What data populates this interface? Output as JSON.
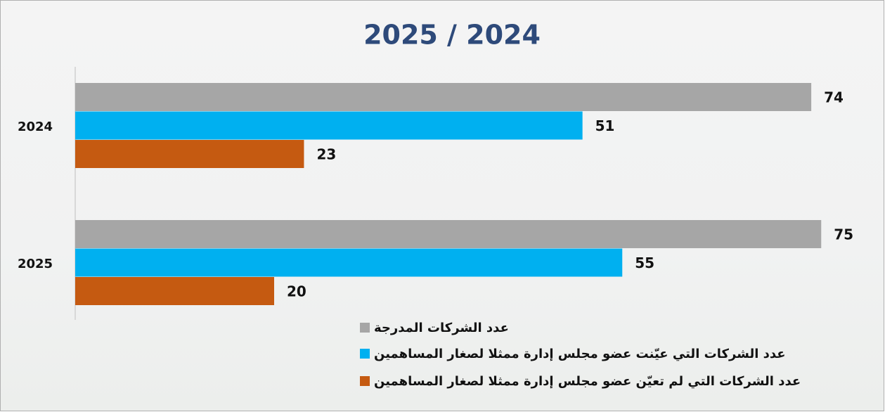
{
  "chart_data": {
    "type": "hbar",
    "title": "2025 / 2024",
    "categories": [
      "2024",
      "2025"
    ],
    "series": [
      {
        "name": "عدد الشركات المدرجة",
        "color": "#a6a6a6",
        "values": [
          74,
          75
        ]
      },
      {
        "name": "عدد الشركات التي عيّنت عضو مجلس إدارة ممثلا  لصغار المساهمين",
        "color": "#00b0f0",
        "values": [
          51,
          55
        ]
      },
      {
        "name": "عدد الشركات التي لم تعيّن عضو مجلس إدارة ممثلا  لصغار المساهمين",
        "color": "#c55a11",
        "values": [
          23,
          20
        ]
      }
    ],
    "xlim": [
      0,
      80
    ]
  }
}
